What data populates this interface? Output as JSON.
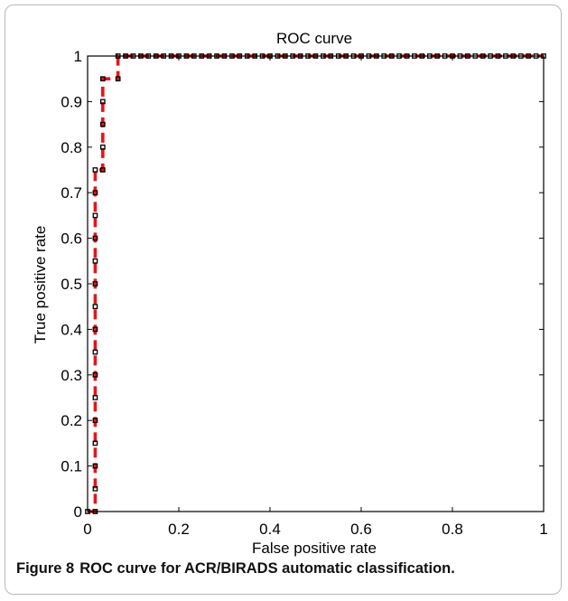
{
  "caption": {
    "figure_label": "Figure 8",
    "text": "ROC curve for ACR/BIRADS automatic classification."
  },
  "chart_data": {
    "type": "line",
    "title": "ROC curve",
    "xlabel": "False positive rate",
    "ylabel": "True positive rate",
    "xlim": [
      0,
      1
    ],
    "ylim": [
      0,
      1
    ],
    "x_ticks": [
      0,
      0.2,
      0.4,
      0.6,
      0.8,
      1
    ],
    "x_tick_labels": [
      "0",
      "0.2",
      "0.4",
      "0.6",
      "0.8",
      "1"
    ],
    "y_ticks": [
      0,
      0.1,
      0.2,
      0.3,
      0.4,
      0.5,
      0.6,
      0.7,
      0.8,
      0.9,
      1
    ],
    "y_tick_labels": [
      "0",
      "0.1",
      "0.2",
      "0.3",
      "0.4",
      "0.5",
      "0.6",
      "0.7",
      "0.8",
      "0.9",
      "1"
    ],
    "grid": false,
    "colors": {
      "curve": "#e8141b",
      "markers": "#000000"
    },
    "series": [
      {
        "style": "dashed line with square markers",
        "x": [
          0,
          0.0167,
          0.0167,
          0.0167,
          0.0167,
          0.0167,
          0.0167,
          0.0167,
          0.0167,
          0.0167,
          0.0167,
          0.0167,
          0.0167,
          0.0167,
          0.0167,
          0.0167,
          0.0167,
          0.0333,
          0.0333,
          0.0333,
          0.0333,
          0.0333,
          0.0667,
          0.0667,
          0.0833,
          0.1,
          0.1167,
          0.1333,
          0.15,
          0.1667,
          0.1833,
          0.2,
          0.2167,
          0.2333,
          0.25,
          0.2667,
          0.2833,
          0.3,
          0.3167,
          0.3333,
          0.35,
          0.3667,
          0.3833,
          0.4,
          0.4167,
          0.4333,
          0.45,
          0.4667,
          0.4833,
          0.5,
          0.5167,
          0.5333,
          0.55,
          0.5667,
          0.5833,
          0.6,
          0.6167,
          0.6333,
          0.65,
          0.6667,
          0.6833,
          0.7,
          0.7167,
          0.7333,
          0.75,
          0.7667,
          0.7833,
          0.8,
          0.8167,
          0.8333,
          0.85,
          0.8667,
          0.8833,
          0.9,
          0.9167,
          0.9333,
          0.95,
          0.9667,
          0.9833,
          1
        ],
        "y": [
          0,
          0,
          0.05,
          0.1,
          0.15,
          0.2,
          0.25,
          0.3,
          0.35,
          0.4,
          0.45,
          0.5,
          0.55,
          0.6,
          0.65,
          0.7,
          0.75,
          0.75,
          0.8,
          0.85,
          0.9,
          0.95,
          0.95,
          1,
          1,
          1,
          1,
          1,
          1,
          1,
          1,
          1,
          1,
          1,
          1,
          1,
          1,
          1,
          1,
          1,
          1,
          1,
          1,
          1,
          1,
          1,
          1,
          1,
          1,
          1,
          1,
          1,
          1,
          1,
          1,
          1,
          1,
          1,
          1,
          1,
          1,
          1,
          1,
          1,
          1,
          1,
          1,
          1,
          1,
          1,
          1,
          1,
          1,
          1,
          1,
          1,
          1,
          1,
          1,
          1
        ]
      }
    ]
  }
}
